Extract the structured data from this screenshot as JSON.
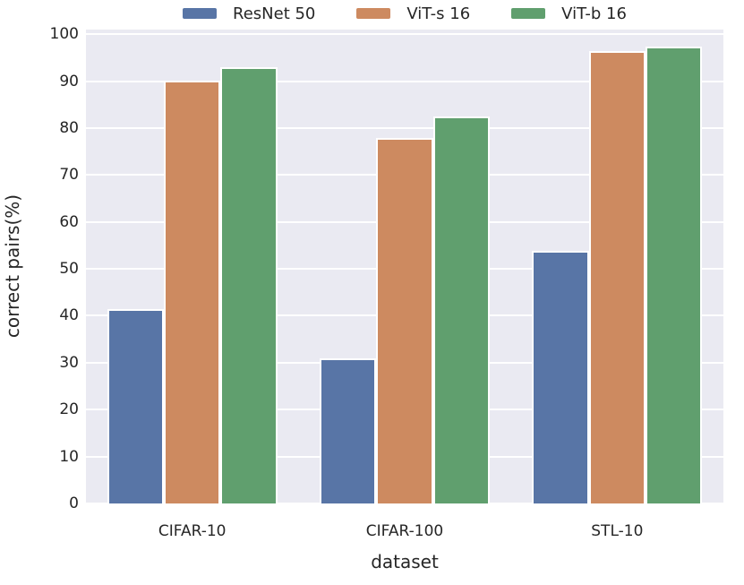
{
  "figure": {
    "background": "#ffffff",
    "plot_background": "#eaeaf2",
    "grid_color": "#ffffff",
    "text_color": "#262626"
  },
  "chart_data": {
    "type": "bar",
    "title": "",
    "xlabel": "dataset",
    "ylabel": "correct pairs(%)",
    "ylim": [
      0,
      101
    ],
    "yticks": [
      0,
      10,
      20,
      30,
      40,
      50,
      60,
      70,
      80,
      90,
      100
    ],
    "grid": "horizontal-white-on-lavender",
    "legend_position": "top-center",
    "categories": [
      "CIFAR-10",
      "CIFAR-100",
      "STL-10"
    ],
    "series": [
      {
        "name": "ResNet 50",
        "color": "#5875A6",
        "values": [
          41.5,
          31.0,
          53.9
        ]
      },
      {
        "name": "ViT-s 16",
        "color": "#CD8A60",
        "values": [
          90.2,
          77.9,
          96.4
        ]
      },
      {
        "name": "ViT-b 16",
        "color": "#609F6E",
        "values": [
          93.0,
          82.4,
          97.3
        ]
      }
    ]
  }
}
